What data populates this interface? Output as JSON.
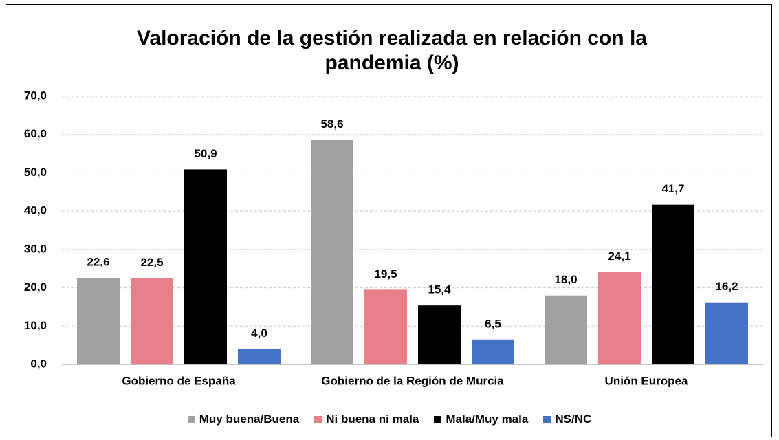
{
  "chart_data": {
    "type": "bar",
    "title": "Valoración de la gestión realizada en relación con la pandemia (%)",
    "categories": [
      "Gobierno de España",
      "Gobierno de la Región de Murcia",
      "Unión Europea"
    ],
    "series": [
      {
        "name": "Muy buena/Buena",
        "color": "#a0a0a0",
        "values": [
          22.6,
          58.6,
          18.0
        ],
        "value_labels": [
          "22,6",
          "58,6",
          "18,0"
        ]
      },
      {
        "name": "Ni buena ni mala",
        "color": "#e8808a",
        "values": [
          22.5,
          19.5,
          24.1
        ],
        "value_labels": [
          "22,5",
          "19,5",
          "24,1"
        ]
      },
      {
        "name": "Mala/Muy mala",
        "color": "#000000",
        "values": [
          50.9,
          15.4,
          41.7
        ],
        "value_labels": [
          "50,9",
          "15,4",
          "41,7"
        ]
      },
      {
        "name": "NS/NC",
        "color": "#4472c4",
        "values": [
          4.0,
          6.5,
          16.2
        ],
        "value_labels": [
          "4,0",
          "6,5",
          "16,2"
        ]
      }
    ],
    "ylim": [
      0,
      70
    ],
    "yticks": [
      {
        "value": 0,
        "label": "0,0"
      },
      {
        "value": 10,
        "label": "10,0"
      },
      {
        "value": 20,
        "label": "20,0"
      },
      {
        "value": 30,
        "label": "30,0"
      },
      {
        "value": 40,
        "label": "40,0"
      },
      {
        "value": 50,
        "label": "50,0"
      },
      {
        "value": 60,
        "label": "60,0"
      },
      {
        "value": 70,
        "label": "70,0"
      }
    ],
    "grid": true
  }
}
